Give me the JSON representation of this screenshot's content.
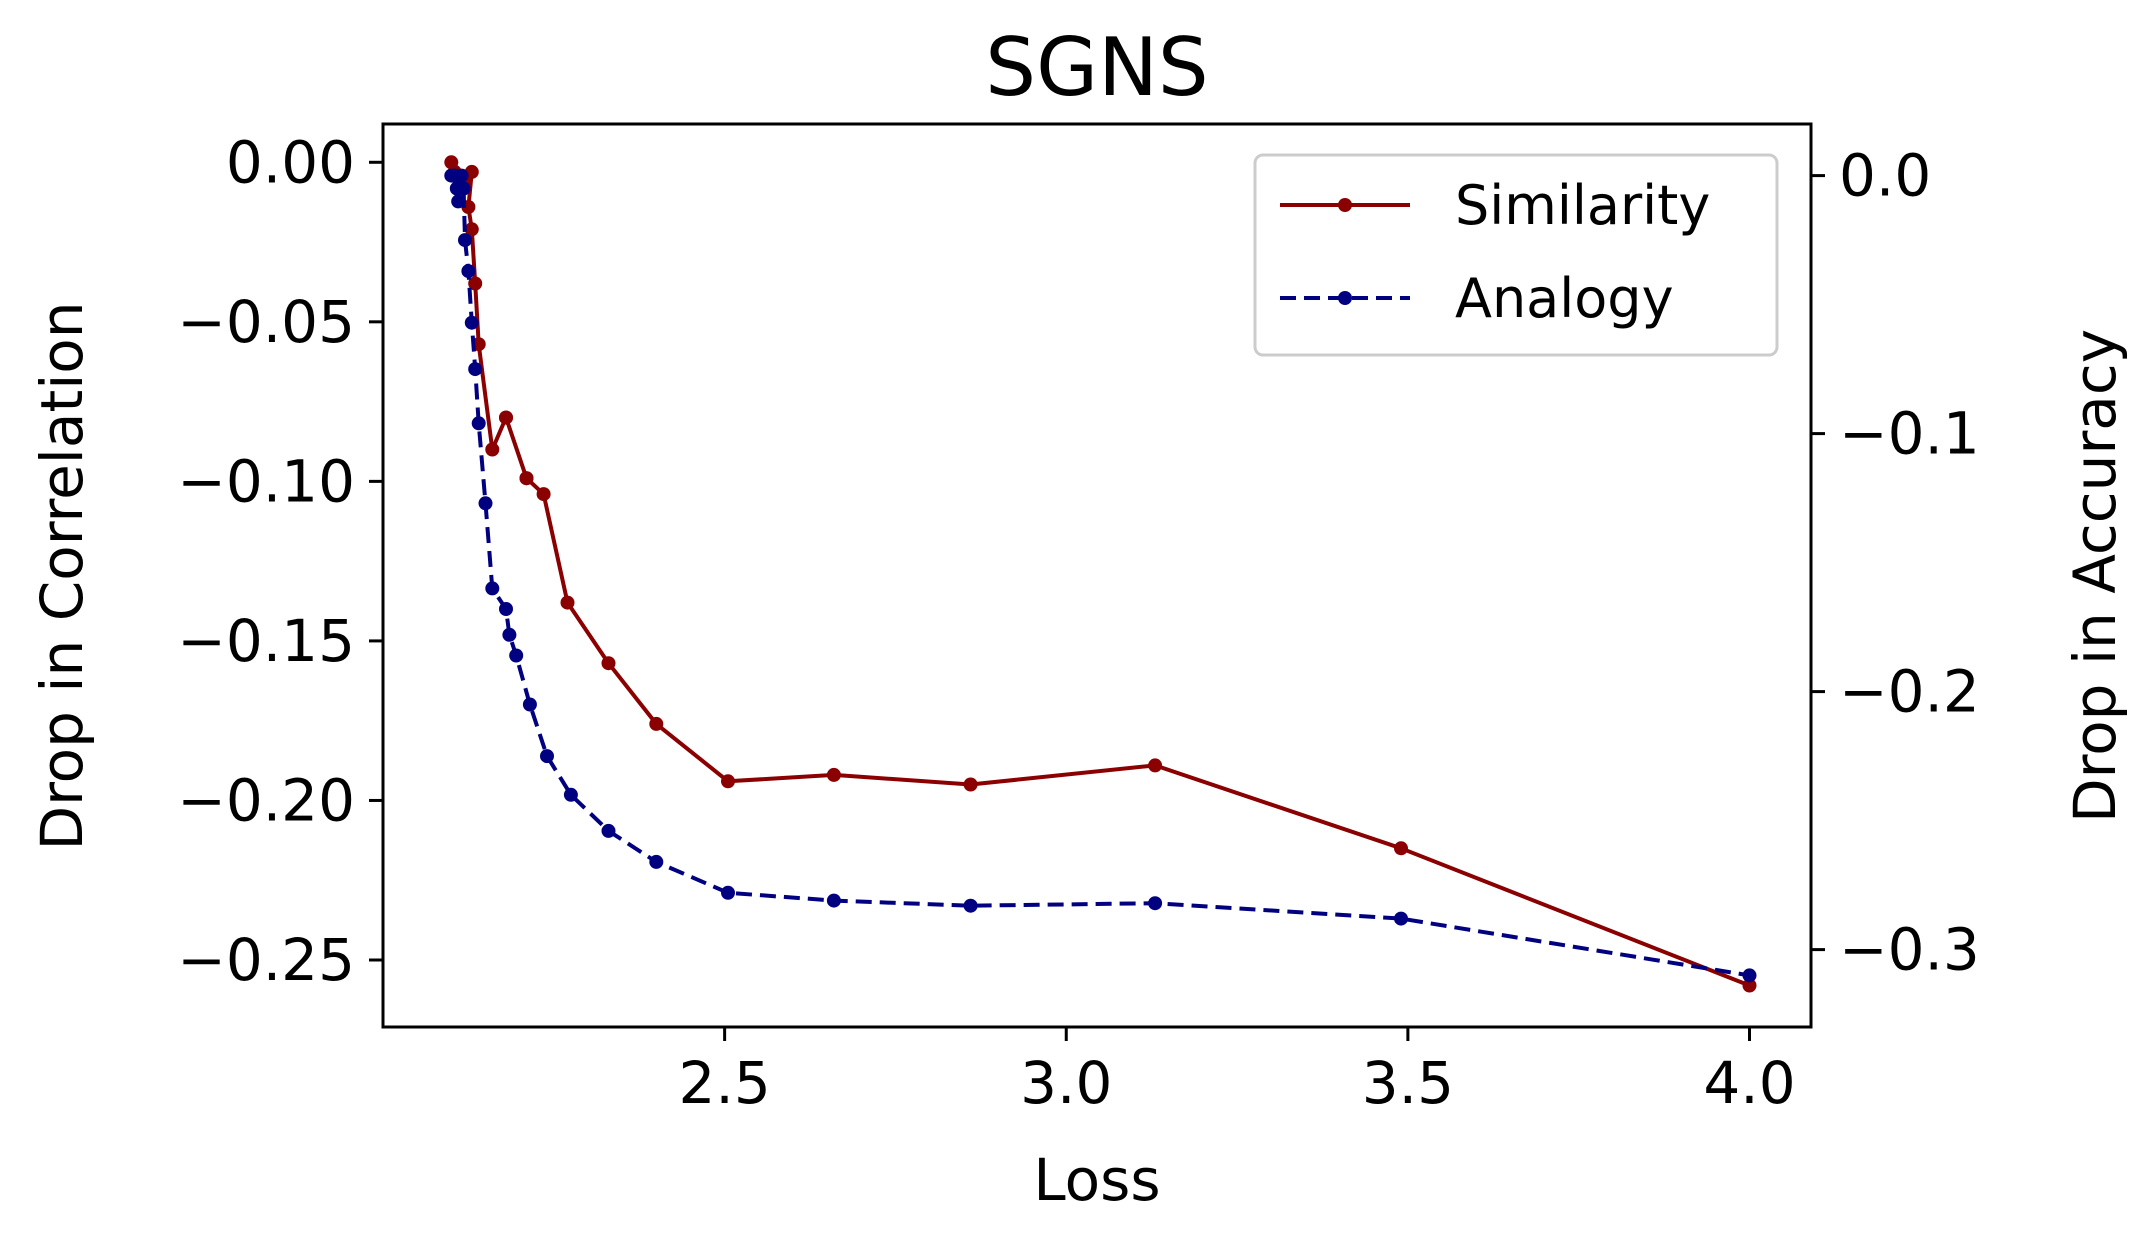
{
  "chart_data": {
    "type": "line",
    "title": "SGNS",
    "xlabel": "Loss",
    "ylabel_left": "Drop in Correlation",
    "ylabel_right": "Drop in Accuracy",
    "xlim": [
      2.0,
      4.09
    ],
    "ylim_left": [
      -0.271,
      0.012
    ],
    "ylim_right": [
      -0.33,
      0.02
    ],
    "x_ticks": [
      2.5,
      3.0,
      3.5,
      4.0
    ],
    "x_tick_labels": [
      "2.5",
      "3.0",
      "3.5",
      "4.0"
    ],
    "y_left_ticks": [
      0.0,
      -0.05,
      -0.1,
      -0.15,
      -0.2,
      -0.25
    ],
    "y_left_tick_labels": [
      "0.00",
      "−0.05",
      "−0.10",
      "−0.15",
      "−0.20",
      "−0.25"
    ],
    "y_right_ticks": [
      0.0,
      -0.1,
      -0.2,
      -0.3
    ],
    "y_right_tick_labels": [
      "0.0",
      "−0.1",
      "−0.2",
      "−0.3"
    ],
    "grid": false,
    "legend_position": "top-right",
    "series": [
      {
        "name": "Similarity",
        "axis": "left",
        "color": "#8b0000",
        "dash": "solid",
        "x": [
          2.1,
          2.105,
          2.11,
          2.12,
          2.13,
          2.125,
          2.13,
          2.135,
          2.14,
          2.16,
          2.18,
          2.21,
          2.18,
          2.21,
          2.235,
          2.27,
          2.33,
          2.4,
          2.505,
          2.66,
          2.86,
          3.13,
          3.49,
          4.0
        ],
        "values": [
          0.0,
          -0.003,
          -0.005,
          -0.007,
          -0.003,
          -0.014,
          -0.021,
          -0.038,
          -0.057,
          -0.09,
          -0.08,
          -0.099,
          -0.08,
          -0.099,
          -0.104,
          -0.138,
          -0.157,
          -0.176,
          -0.194,
          -0.192,
          -0.195,
          -0.189,
          -0.215,
          -0.258
        ]
      },
      {
        "name": "Analogy",
        "axis": "right",
        "color": "#000080",
        "dash": "dashed",
        "x": [
          2.1,
          2.105,
          2.108,
          2.11,
          2.115,
          2.118,
          2.12,
          2.125,
          2.13,
          2.135,
          2.14,
          2.15,
          2.16,
          2.18,
          2.185,
          2.195,
          2.215,
          2.24,
          2.275,
          2.33,
          2.4,
          2.505,
          2.66,
          2.86,
          3.13,
          3.49,
          4.0
        ],
        "values": [
          0.0,
          -0.0,
          -0.005,
          -0.01,
          -0.0,
          -0.005,
          -0.025,
          -0.037,
          -0.057,
          -0.075,
          -0.096,
          -0.127,
          -0.16,
          -0.168,
          -0.178,
          -0.186,
          -0.205,
          -0.225,
          -0.24,
          -0.254,
          -0.266,
          -0.278,
          -0.281,
          -0.283,
          -0.282,
          -0.288,
          -0.31
        ]
      }
    ]
  }
}
